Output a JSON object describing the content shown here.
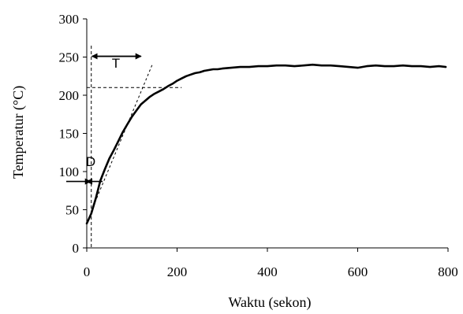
{
  "chart_data": {
    "type": "line",
    "title": "",
    "xlabel": "Waktu (sekon)",
    "ylabel": "Temperatur (°C)",
    "xlim": [
      0,
      800
    ],
    "ylim": [
      0,
      300
    ],
    "x_ticks": [
      "0",
      "200",
      "400",
      "600",
      "800"
    ],
    "y_ticks": [
      "0",
      "50",
      "100",
      "150",
      "200",
      "250",
      "300"
    ],
    "grid": false,
    "legend": "none",
    "line_color": "#000000",
    "series": [
      {
        "x": [
          0,
          10,
          20,
          30,
          40,
          50,
          60,
          70,
          80,
          90,
          100,
          110,
          120,
          130,
          140,
          150,
          160,
          170,
          180,
          190,
          200,
          210,
          220,
          230,
          240,
          250,
          260,
          270,
          280,
          290,
          300,
          320,
          340,
          360,
          380,
          400,
          420,
          440,
          460,
          480,
          500,
          520,
          540,
          560,
          580,
          600,
          620,
          640,
          660,
          680,
          700,
          720,
          740,
          760,
          780,
          795
        ],
        "y": [
          32,
          45,
          65,
          88,
          103,
          117,
          128,
          140,
          152,
          162,
          172,
          180,
          188,
          193,
          198,
          202,
          205,
          208,
          212,
          215,
          219,
          222,
          225,
          227,
          229,
          230,
          232,
          233,
          234,
          234,
          235,
          236,
          237,
          237,
          238,
          238,
          239,
          239,
          238,
          239,
          240,
          239,
          239,
          238,
          237,
          236,
          238,
          239,
          238,
          238,
          239,
          238,
          238,
          237,
          238,
          237
        ]
      }
    ],
    "annotations": {
      "tangent_line": {
        "x": [
          10,
          145
        ],
        "y": [
          48,
          240
        ]
      },
      "dashed_vertical": {
        "x": 10,
        "y": [
          0,
          265
        ]
      },
      "dashed_horizontal": {
        "x": [
          0,
          210
        ],
        "y": 210
      },
      "T_label": "T",
      "T_arrow": {
        "x": [
          10,
          120
        ],
        "y": 251
      },
      "D_label": "D",
      "D_arrow": {
        "x": [
          -22,
          28
        ],
        "y": 87
      }
    }
  }
}
